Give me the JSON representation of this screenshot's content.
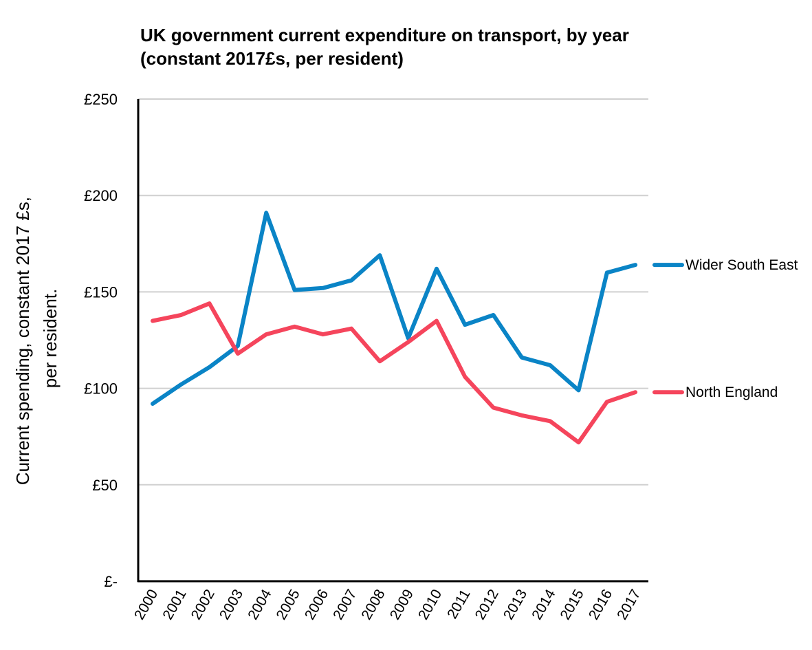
{
  "chart_data": {
    "type": "line",
    "title": [
      "UK government current expenditure on transport, by year",
      "(constant 2017£s, per resident)"
    ],
    "xlabel": "",
    "ylabel": [
      "Current spending, constant 2017 £s,",
      "per resident."
    ],
    "ylim": [
      0,
      250
    ],
    "yticks": [
      0,
      50,
      100,
      150,
      200,
      250
    ],
    "ytick_labels": [
      "£-",
      "£50",
      "£100",
      "£150",
      "£200",
      "£250"
    ],
    "categories": [
      "2000",
      "2001",
      "2002",
      "2003",
      "2004",
      "2005",
      "2006",
      "2007",
      "2008",
      "2009",
      "2010",
      "2011",
      "2012",
      "2013",
      "2014",
      "2015",
      "2016",
      "2017"
    ],
    "grid": "horizontal",
    "legend_placement": "right, at line ends",
    "series": [
      {
        "name": "Wider South East",
        "color": "#0A84C6",
        "values": [
          92,
          102,
          111,
          122,
          191,
          151,
          152,
          156,
          169,
          126,
          162,
          133,
          138,
          116,
          112,
          99,
          160,
          164
        ]
      },
      {
        "name": "North England",
        "color": "#F5455C",
        "values": [
          135,
          138,
          144,
          118,
          128,
          132,
          128,
          131,
          114,
          124,
          135,
          106,
          90,
          86,
          83,
          72,
          93,
          98
        ]
      }
    ]
  }
}
